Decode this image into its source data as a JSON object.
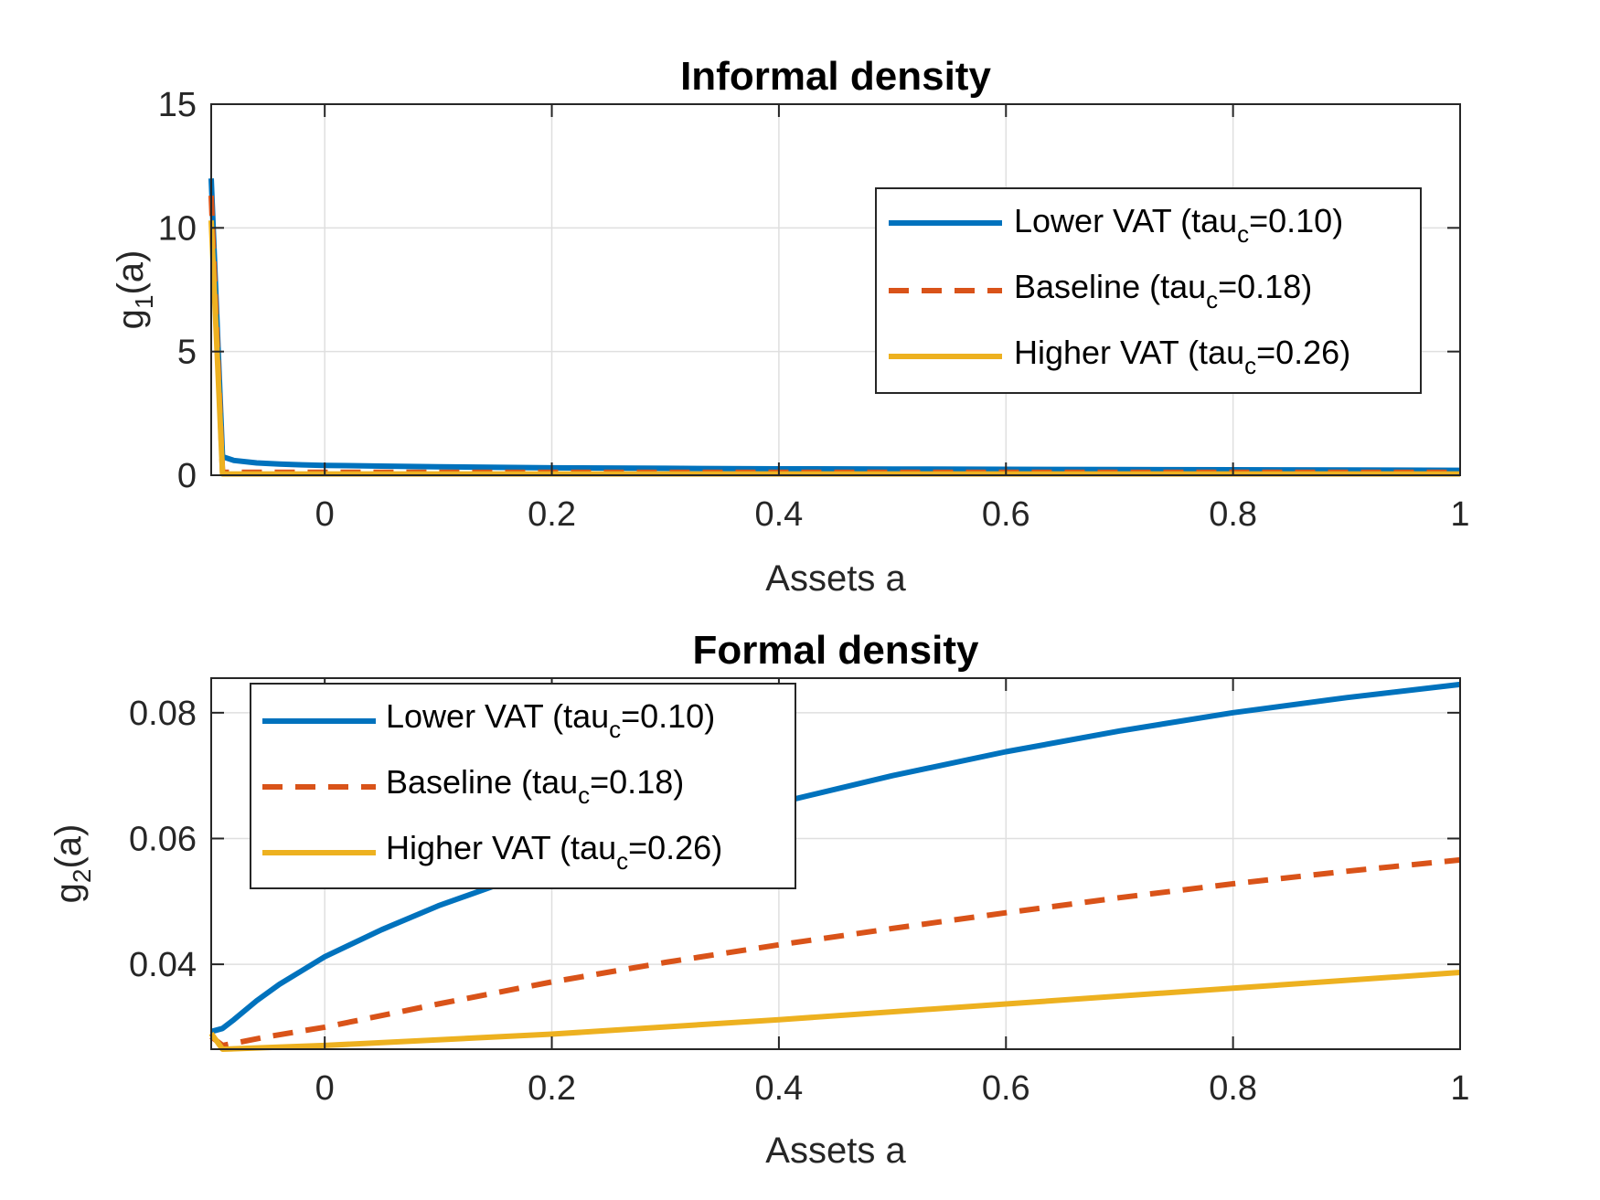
{
  "colors": {
    "lower_vat": "#0072BD",
    "baseline": "#D95319",
    "higher_vat": "#EDB120",
    "grid": "#DFDFDF",
    "axes": "#262626"
  },
  "chart_data": [
    {
      "id": "informal",
      "type": "line",
      "title": "Informal density",
      "xlabel": "Assets a",
      "ylabel_main": "g",
      "ylabel_sub": "1",
      "ylabel_tail": "(a)",
      "xlim": [
        -0.1,
        1.0
      ],
      "ylim": [
        0,
        15
      ],
      "grid": true,
      "xticks": [
        0,
        0.2,
        0.4,
        0.6,
        0.8,
        1
      ],
      "xtick_labels": [
        "0",
        "0.2",
        "0.4",
        "0.6",
        "0.8",
        "1"
      ],
      "yticks": [
        0,
        5,
        10,
        15
      ],
      "ytick_labels": [
        "0",
        "5",
        "10",
        "15"
      ],
      "legend_position": "top-right",
      "series": [
        {
          "name": "Lower VAT (tau_c=0.10)",
          "legend_main": "Lower VAT (tau",
          "legend_sub": "c",
          "legend_tail": "=0.10)",
          "style": "solid",
          "color_key": "lower_vat",
          "x": [
            -0.1,
            -0.09,
            -0.08,
            -0.06,
            -0.04,
            -0.02,
            0.0,
            0.05,
            0.1,
            0.2,
            0.3,
            0.4,
            0.5,
            0.6,
            0.7,
            0.8,
            0.9,
            1.0
          ],
          "y": [
            12.0,
            0.75,
            0.6,
            0.5,
            0.45,
            0.42,
            0.4,
            0.37,
            0.34,
            0.3,
            0.28,
            0.26,
            0.25,
            0.24,
            0.23,
            0.22,
            0.21,
            0.2
          ]
        },
        {
          "name": "Baseline (tau_c=0.18)",
          "legend_main": "Baseline (tau",
          "legend_sub": "c",
          "legend_tail": "=0.18)",
          "style": "dashed",
          "color_key": "baseline",
          "x": [
            -0.1,
            -0.09,
            0.0,
            0.2,
            0.4,
            0.6,
            0.8,
            1.0
          ],
          "y": [
            11.3,
            0.12,
            0.12,
            0.12,
            0.12,
            0.12,
            0.12,
            0.12
          ]
        },
        {
          "name": "Higher VAT (tau_c=0.26)",
          "legend_main": "Higher VAT (tau",
          "legend_sub": "c",
          "legend_tail": "=0.26)",
          "style": "solid",
          "color_key": "higher_vat",
          "x": [
            -0.1,
            -0.09,
            0.0,
            0.2,
            0.4,
            0.6,
            0.8,
            1.0
          ],
          "y": [
            10.3,
            0.05,
            0.05,
            0.05,
            0.05,
            0.05,
            0.05,
            0.05
          ]
        }
      ]
    },
    {
      "id": "formal",
      "type": "line",
      "title": "Formal density",
      "xlabel": "Assets a",
      "ylabel_main": "g",
      "ylabel_sub": "2",
      "ylabel_tail": "(a)",
      "xlim": [
        -0.1,
        1.0
      ],
      "ylim": [
        0.0265,
        0.0855
      ],
      "grid": true,
      "xticks": [
        0,
        0.2,
        0.4,
        0.6,
        0.8,
        1
      ],
      "xtick_labels": [
        "0",
        "0.2",
        "0.4",
        "0.6",
        "0.8",
        "1"
      ],
      "yticks": [
        0.04,
        0.06,
        0.08
      ],
      "ytick_labels": [
        "0.04",
        "0.06",
        "0.08"
      ],
      "legend_position": "top-left",
      "series": [
        {
          "name": "Lower VAT (tau_c=0.10)",
          "legend_main": "Lower VAT (tau",
          "legend_sub": "c",
          "legend_tail": "=0.10)",
          "style": "solid",
          "color_key": "lower_vat",
          "x": [
            -0.1,
            -0.09,
            -0.08,
            -0.06,
            -0.04,
            -0.02,
            0.0,
            0.05,
            0.1,
            0.2,
            0.3,
            0.4,
            0.5,
            0.6,
            0.7,
            0.8,
            0.9,
            1.0
          ],
          "y": [
            0.0293,
            0.0298,
            0.0312,
            0.0342,
            0.0368,
            0.039,
            0.0412,
            0.0455,
            0.0493,
            0.0557,
            0.061,
            0.0657,
            0.07,
            0.0738,
            0.0771,
            0.08,
            0.0824,
            0.0845
          ]
        },
        {
          "name": "Baseline (tau_c=0.18)",
          "legend_main": "Baseline (tau",
          "legend_sub": "c",
          "legend_tail": "=0.18)",
          "style": "dashed",
          "color_key": "baseline",
          "x": [
            -0.1,
            -0.09,
            -0.05,
            0.0,
            0.1,
            0.2,
            0.3,
            0.4,
            0.5,
            0.6,
            0.7,
            0.8,
            0.9,
            1.0
          ],
          "y": [
            0.0285,
            0.0271,
            0.0285,
            0.03,
            0.0337,
            0.0372,
            0.0403,
            0.0431,
            0.0457,
            0.0482,
            0.0506,
            0.0528,
            0.0548,
            0.0566
          ]
        },
        {
          "name": "Higher VAT (tau_c=0.26)",
          "legend_main": "Higher VAT (tau",
          "legend_sub": "c",
          "legend_tail": "=0.26)",
          "style": "solid",
          "color_key": "higher_vat",
          "x": [
            -0.1,
            -0.09,
            0.0,
            0.2,
            0.4,
            0.6,
            0.8,
            1.0
          ],
          "y": [
            0.029,
            0.0265,
            0.0271,
            0.0289,
            0.0312,
            0.0337,
            0.0362,
            0.0387
          ]
        }
      ]
    }
  ]
}
